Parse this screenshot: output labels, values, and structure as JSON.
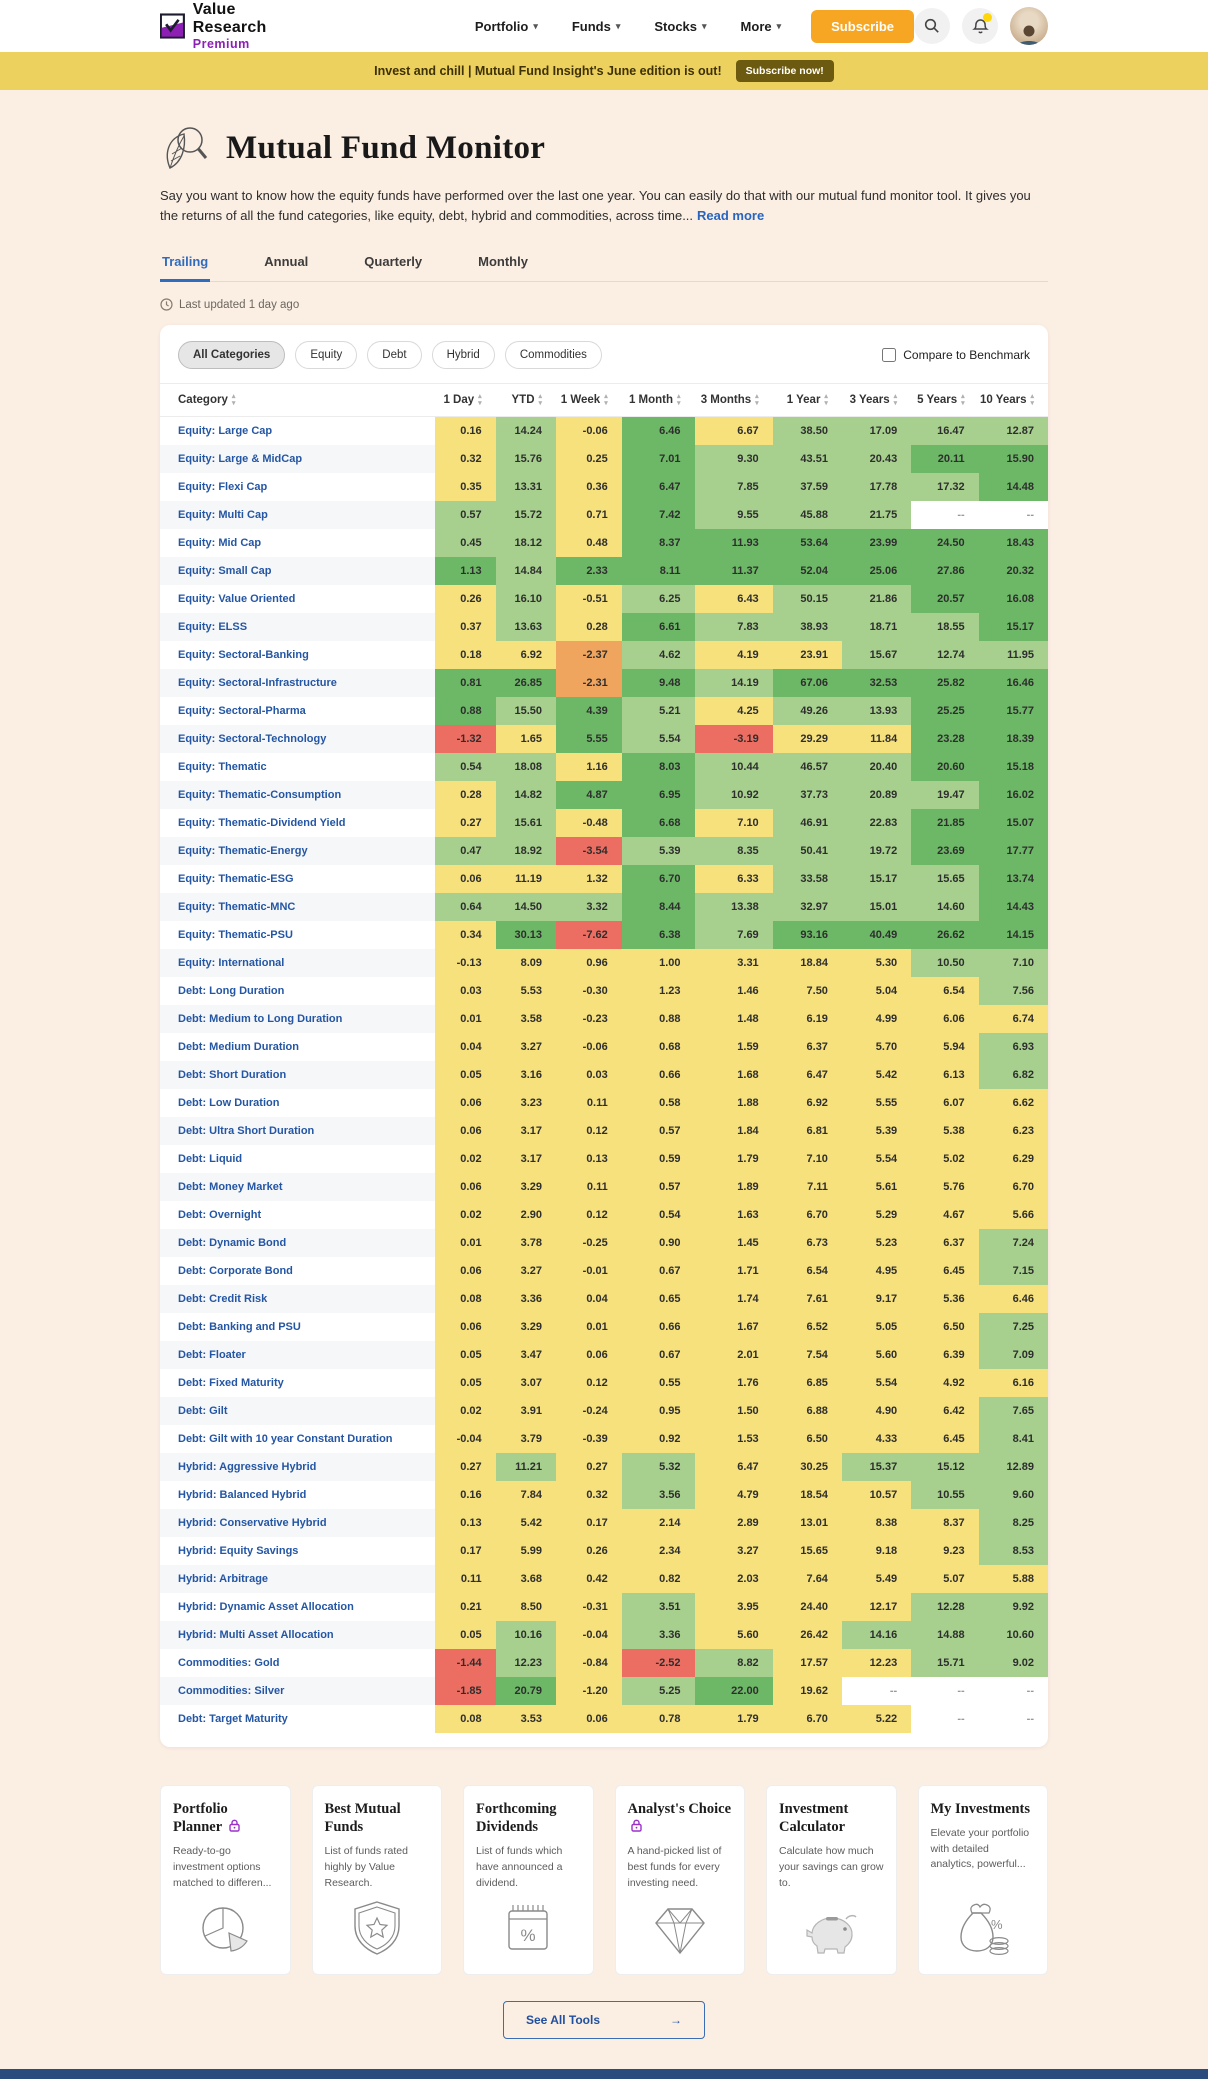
{
  "header": {
    "logo": {
      "line1": "Value Research",
      "line2": "Premium"
    },
    "nav": [
      {
        "label": "Portfolio"
      },
      {
        "label": "Funds"
      },
      {
        "label": "Stocks"
      },
      {
        "label": "More"
      }
    ],
    "subscribe_label": "Subscribe",
    "icons": [
      "search-icon",
      "notifications-bell-icon",
      "user-avatar"
    ]
  },
  "banner": {
    "text": "Invest and chill | Mutual Fund Insight's June edition is out!",
    "button_label": "Subscribe now!",
    "bg_color": "#edd15e",
    "button_color": "#6d5a11"
  },
  "page": {
    "title": "Mutual Fund Monitor",
    "title_icon": "leaf-magnifier-icon",
    "description": "Say you want to know how the equity funds have performed over the last one year. You can easily do that with our mutual fund monitor tool. It gives you the returns of all the fund categories, like equity, debt, hybrid and commodities, across time...",
    "read_more_label": "Read more",
    "last_updated": "Last updated 1 day ago"
  },
  "tabs": {
    "items": [
      "Trailing",
      "Annual",
      "Quarterly",
      "Monthly"
    ],
    "active": "Trailing"
  },
  "filters": {
    "chips": [
      "All Categories",
      "Equity",
      "Debt",
      "Hybrid",
      "Commodities"
    ],
    "active_chip": "All Categories",
    "benchmark_label": "Compare to Benchmark",
    "benchmark_checked": false
  },
  "heatmap_colors": {
    "Y": "#f6e17c",
    "G": "#a7d08e",
    "D": "#6db867",
    "O": "#f0a55f",
    "R": "#ec6e62",
    "W": "#ffffff"
  },
  "table": {
    "category_header": "Category",
    "columns": [
      "1 Day",
      "YTD",
      "1 Week",
      "1 Month",
      "3 Months",
      "1 Year",
      "3 Years",
      "5 Years",
      "10 Years"
    ],
    "rows": [
      {
        "category": "Equity: Large Cap",
        "values": [
          "0.16",
          "14.24",
          "-0.06",
          "6.46",
          "6.67",
          "38.50",
          "17.09",
          "16.47",
          "12.87"
        ],
        "colors": "YGYDYGGGG"
      },
      {
        "category": "Equity: Large & MidCap",
        "values": [
          "0.32",
          "15.76",
          "0.25",
          "7.01",
          "9.30",
          "43.51",
          "20.43",
          "20.11",
          "15.90"
        ],
        "colors": "YGYDGGGDD"
      },
      {
        "category": "Equity: Flexi Cap",
        "values": [
          "0.35",
          "13.31",
          "0.36",
          "6.47",
          "7.85",
          "37.59",
          "17.78",
          "17.32",
          "14.48"
        ],
        "colors": "YGYDGGGGD"
      },
      {
        "category": "Equity: Multi Cap",
        "values": [
          "0.57",
          "15.72",
          "0.71",
          "7.42",
          "9.55",
          "45.88",
          "21.75",
          "--",
          "--"
        ],
        "colors": "GGYDGGGWW"
      },
      {
        "category": "Equity: Mid Cap",
        "values": [
          "0.45",
          "18.12",
          "0.48",
          "8.37",
          "11.93",
          "53.64",
          "23.99",
          "24.50",
          "18.43"
        ],
        "colors": "GGYDDDDDD"
      },
      {
        "category": "Equity: Small Cap",
        "values": [
          "1.13",
          "14.84",
          "2.33",
          "8.11",
          "11.37",
          "52.04",
          "25.06",
          "27.86",
          "20.32"
        ],
        "colors": "DGDDDDDDD"
      },
      {
        "category": "Equity: Value Oriented",
        "values": [
          "0.26",
          "16.10",
          "-0.51",
          "6.25",
          "6.43",
          "50.15",
          "21.86",
          "20.57",
          "16.08"
        ],
        "colors": "YGYGYGGDD"
      },
      {
        "category": "Equity: ELSS",
        "values": [
          "0.37",
          "13.63",
          "0.28",
          "6.61",
          "7.83",
          "38.93",
          "18.71",
          "18.55",
          "15.17"
        ],
        "colors": "YGYDGGGGD"
      },
      {
        "category": "Equity: Sectoral-Banking",
        "values": [
          "0.18",
          "6.92",
          "-2.37",
          "4.62",
          "4.19",
          "23.91",
          "15.67",
          "12.74",
          "11.95"
        ],
        "colors": "YYOGYYGGG"
      },
      {
        "category": "Equity: Sectoral-Infrastructure",
        "values": [
          "0.81",
          "26.85",
          "-2.31",
          "9.48",
          "14.19",
          "67.06",
          "32.53",
          "25.82",
          "16.46"
        ],
        "colors": "DDODGDDDD"
      },
      {
        "category": "Equity: Sectoral-Pharma",
        "values": [
          "0.88",
          "15.50",
          "4.39",
          "5.21",
          "4.25",
          "49.26",
          "13.93",
          "25.25",
          "15.77"
        ],
        "colors": "DGDGYGGDD"
      },
      {
        "category": "Equity: Sectoral-Technology",
        "values": [
          "-1.32",
          "1.65",
          "5.55",
          "5.54",
          "-3.19",
          "29.29",
          "11.84",
          "23.28",
          "18.39"
        ],
        "colors": "RYDGRYYDD"
      },
      {
        "category": "Equity: Thematic",
        "values": [
          "0.54",
          "18.08",
          "1.16",
          "8.03",
          "10.44",
          "46.57",
          "20.40",
          "20.60",
          "15.18"
        ],
        "colors": "GGYDGGGDD"
      },
      {
        "category": "Equity: Thematic-Consumption",
        "values": [
          "0.28",
          "14.82",
          "4.87",
          "6.95",
          "10.92",
          "37.73",
          "20.89",
          "19.47",
          "16.02"
        ],
        "colors": "YGDDGGGGD"
      },
      {
        "category": "Equity: Thematic-Dividend Yield",
        "values": [
          "0.27",
          "15.61",
          "-0.48",
          "6.68",
          "7.10",
          "46.91",
          "22.83",
          "21.85",
          "15.07"
        ],
        "colors": "YGYDYGGDD"
      },
      {
        "category": "Equity: Thematic-Energy",
        "values": [
          "0.47",
          "18.92",
          "-3.54",
          "5.39",
          "8.35",
          "50.41",
          "19.72",
          "23.69",
          "17.77"
        ],
        "colors": "GGRGGGGDD"
      },
      {
        "category": "Equity: Thematic-ESG",
        "values": [
          "0.06",
          "11.19",
          "1.32",
          "6.70",
          "6.33",
          "33.58",
          "15.17",
          "15.65",
          "13.74"
        ],
        "colors": "YYYDYGGGD"
      },
      {
        "category": "Equity: Thematic-MNC",
        "values": [
          "0.64",
          "14.50",
          "3.32",
          "8.44",
          "13.38",
          "32.97",
          "15.01",
          "14.60",
          "14.43"
        ],
        "colors": "GGGDGGGGD"
      },
      {
        "category": "Equity: Thematic-PSU",
        "values": [
          "0.34",
          "30.13",
          "-7.62",
          "6.38",
          "7.69",
          "93.16",
          "40.49",
          "26.62",
          "14.15"
        ],
        "colors": "YDRDGDDDD"
      },
      {
        "category": "Equity: International",
        "values": [
          "-0.13",
          "8.09",
          "0.96",
          "1.00",
          "3.31",
          "18.84",
          "5.30",
          "10.50",
          "7.10"
        ],
        "colors": "YYYYYYYGG"
      },
      {
        "category": "Debt: Long Duration",
        "values": [
          "0.03",
          "5.53",
          "-0.30",
          "1.23",
          "1.46",
          "7.50",
          "5.04",
          "6.54",
          "7.56"
        ],
        "colors": "YYYYYYYYG"
      },
      {
        "category": "Debt: Medium to Long Duration",
        "values": [
          "0.01",
          "3.58",
          "-0.23",
          "0.88",
          "1.48",
          "6.19",
          "4.99",
          "6.06",
          "6.74"
        ],
        "colors": "YYYYYYYYY"
      },
      {
        "category": "Debt: Medium Duration",
        "values": [
          "0.04",
          "3.27",
          "-0.06",
          "0.68",
          "1.59",
          "6.37",
          "5.70",
          "5.94",
          "6.93"
        ],
        "colors": "YYYYYYYYG"
      },
      {
        "category": "Debt: Short Duration",
        "values": [
          "0.05",
          "3.16",
          "0.03",
          "0.66",
          "1.68",
          "6.47",
          "5.42",
          "6.13",
          "6.82"
        ],
        "colors": "YYYYYYYYG"
      },
      {
        "category": "Debt: Low Duration",
        "values": [
          "0.06",
          "3.23",
          "0.11",
          "0.58",
          "1.88",
          "6.92",
          "5.55",
          "6.07",
          "6.62"
        ],
        "colors": "YYYYYYYYY"
      },
      {
        "category": "Debt: Ultra Short Duration",
        "values": [
          "0.06",
          "3.17",
          "0.12",
          "0.57",
          "1.84",
          "6.81",
          "5.39",
          "5.38",
          "6.23"
        ],
        "colors": "YYYYYYYYY"
      },
      {
        "category": "Debt: Liquid",
        "values": [
          "0.02",
          "3.17",
          "0.13",
          "0.59",
          "1.79",
          "7.10",
          "5.54",
          "5.02",
          "6.29"
        ],
        "colors": "YYYYYYYYY"
      },
      {
        "category": "Debt: Money Market",
        "values": [
          "0.06",
          "3.29",
          "0.11",
          "0.57",
          "1.89",
          "7.11",
          "5.61",
          "5.76",
          "6.70"
        ],
        "colors": "YYYYYYYYY"
      },
      {
        "category": "Debt: Overnight",
        "values": [
          "0.02",
          "2.90",
          "0.12",
          "0.54",
          "1.63",
          "6.70",
          "5.29",
          "4.67",
          "5.66"
        ],
        "colors": "YYYYYYYYY"
      },
      {
        "category": "Debt: Dynamic Bond",
        "values": [
          "0.01",
          "3.78",
          "-0.25",
          "0.90",
          "1.45",
          "6.73",
          "5.23",
          "6.37",
          "7.24"
        ],
        "colors": "YYYYYYYYG"
      },
      {
        "category": "Debt: Corporate Bond",
        "values": [
          "0.06",
          "3.27",
          "-0.01",
          "0.67",
          "1.71",
          "6.54",
          "4.95",
          "6.45",
          "7.15"
        ],
        "colors": "YYYYYYYYG"
      },
      {
        "category": "Debt: Credit Risk",
        "values": [
          "0.08",
          "3.36",
          "0.04",
          "0.65",
          "1.74",
          "7.61",
          "9.17",
          "5.36",
          "6.46"
        ],
        "colors": "YYYYYYYYY"
      },
      {
        "category": "Debt: Banking and PSU",
        "values": [
          "0.06",
          "3.29",
          "0.01",
          "0.66",
          "1.67",
          "6.52",
          "5.05",
          "6.50",
          "7.25"
        ],
        "colors": "YYYYYYYYG"
      },
      {
        "category": "Debt: Floater",
        "values": [
          "0.05",
          "3.47",
          "0.06",
          "0.67",
          "2.01",
          "7.54",
          "5.60",
          "6.39",
          "7.09"
        ],
        "colors": "YYYYYYYYG"
      },
      {
        "category": "Debt: Fixed Maturity",
        "values": [
          "0.05",
          "3.07",
          "0.12",
          "0.55",
          "1.76",
          "6.85",
          "5.54",
          "4.92",
          "6.16"
        ],
        "colors": "YYYYYYYYY"
      },
      {
        "category": "Debt: Gilt",
        "values": [
          "0.02",
          "3.91",
          "-0.24",
          "0.95",
          "1.50",
          "6.88",
          "4.90",
          "6.42",
          "7.65"
        ],
        "colors": "YYYYYYYYG"
      },
      {
        "category": "Debt: Gilt with 10 year Constant Duration",
        "values": [
          "-0.04",
          "3.79",
          "-0.39",
          "0.92",
          "1.53",
          "6.50",
          "4.33",
          "6.45",
          "8.41"
        ],
        "colors": "YYYYYYYYG"
      },
      {
        "category": "Hybrid: Aggressive Hybrid",
        "values": [
          "0.27",
          "11.21",
          "0.27",
          "5.32",
          "6.47",
          "30.25",
          "15.37",
          "15.12",
          "12.89"
        ],
        "colors": "YGYGYYGGG"
      },
      {
        "category": "Hybrid: Balanced Hybrid",
        "values": [
          "0.16",
          "7.84",
          "0.32",
          "3.56",
          "4.79",
          "18.54",
          "10.57",
          "10.55",
          "9.60"
        ],
        "colors": "YYYGYYYGG"
      },
      {
        "category": "Hybrid: Conservative Hybrid",
        "values": [
          "0.13",
          "5.42",
          "0.17",
          "2.14",
          "2.89",
          "13.01",
          "8.38",
          "8.37",
          "8.25"
        ],
        "colors": "YYYYYYYYG"
      },
      {
        "category": "Hybrid: Equity Savings",
        "values": [
          "0.17",
          "5.99",
          "0.26",
          "2.34",
          "3.27",
          "15.65",
          "9.18",
          "9.23",
          "8.53"
        ],
        "colors": "YYYYYYYYG"
      },
      {
        "category": "Hybrid: Arbitrage",
        "values": [
          "0.11",
          "3.68",
          "0.42",
          "0.82",
          "2.03",
          "7.64",
          "5.49",
          "5.07",
          "5.88"
        ],
        "colors": "YYYYYYYYY"
      },
      {
        "category": "Hybrid: Dynamic Asset Allocation",
        "values": [
          "0.21",
          "8.50",
          "-0.31",
          "3.51",
          "3.95",
          "24.40",
          "12.17",
          "12.28",
          "9.92"
        ],
        "colors": "YYYGYYYGG"
      },
      {
        "category": "Hybrid: Multi Asset Allocation",
        "values": [
          "0.05",
          "10.16",
          "-0.04",
          "3.36",
          "5.60",
          "26.42",
          "14.16",
          "14.88",
          "10.60"
        ],
        "colors": "YGYGYYGGG"
      },
      {
        "category": "Commodities: Gold",
        "values": [
          "-1.44",
          "12.23",
          "-0.84",
          "-2.52",
          "8.82",
          "17.57",
          "12.23",
          "15.71",
          "9.02"
        ],
        "colors": "RGYRGYYGG"
      },
      {
        "category": "Commodities: Silver",
        "values": [
          "-1.85",
          "20.79",
          "-1.20",
          "5.25",
          "22.00",
          "19.62",
          "--",
          "--",
          "--"
        ],
        "colors": "RDYGDYWWW"
      },
      {
        "category": "Debt: Target Maturity",
        "values": [
          "0.08",
          "3.53",
          "0.06",
          "0.78",
          "1.79",
          "6.70",
          "5.22",
          "--",
          "--"
        ],
        "colors": "YYYYYYYWW"
      }
    ]
  },
  "tools": {
    "cards": [
      {
        "title": "Portfolio Planner",
        "locked": true,
        "icon": "pie-chart-icon",
        "description": "Ready-to-go investment options matched to differen..."
      },
      {
        "title": "Best Mutual Funds",
        "locked": false,
        "icon": "shield-star-icon",
        "description": "List of funds rated highly by Value Research."
      },
      {
        "title": "Forthcoming Dividends",
        "locked": false,
        "icon": "calendar-percent-icon",
        "description": "List of funds which have announced a dividend."
      },
      {
        "title": "Analyst's Choice",
        "locked": true,
        "icon": "diamond-icon",
        "description": "A hand-picked list of best funds for every investing need."
      },
      {
        "title": "Investment Calculator",
        "locked": false,
        "icon": "piggy-bank-icon",
        "description": "Calculate how much your savings can grow to."
      },
      {
        "title": "My Investments",
        "locked": false,
        "icon": "money-bag-icon",
        "description": "Elevate your portfolio with detailed analytics, powerful..."
      }
    ],
    "see_all_label": "See All Tools",
    "see_all_arrow": "→"
  }
}
